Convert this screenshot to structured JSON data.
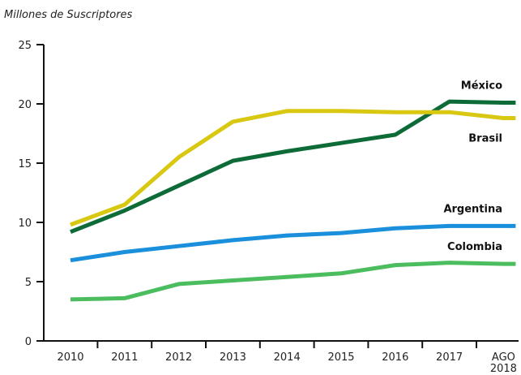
{
  "chart_data": {
    "type": "line",
    "title": "",
    "ylabel": "Millones de Suscriptores",
    "xlabel": "",
    "categories": [
      "2010",
      "2011",
      "2012",
      "2013",
      "2014",
      "2015",
      "2016",
      "2017",
      "AGO 2018"
    ],
    "category_lines": [
      [
        "2010"
      ],
      [
        "2011"
      ],
      [
        "2012"
      ],
      [
        "2013"
      ],
      [
        "2014"
      ],
      [
        "2015"
      ],
      [
        "2016"
      ],
      [
        "2017"
      ],
      [
        "AGO",
        "2018"
      ]
    ],
    "ylim": [
      0,
      25
    ],
    "yticks": [
      0,
      5,
      10,
      15,
      20,
      25
    ],
    "grid": false,
    "legend": "direct labels at line ends",
    "series": [
      {
        "name": "México",
        "color": "#0d6b37",
        "values": [
          9.2,
          11.0,
          13.1,
          15.2,
          16.0,
          16.7,
          17.4,
          20.2,
          20.1
        ]
      },
      {
        "name": "Brasil",
        "color": "#d9c812",
        "values": [
          9.8,
          11.5,
          15.5,
          18.5,
          19.4,
          19.4,
          19.3,
          19.3,
          18.8
        ]
      },
      {
        "name": "Argentina",
        "color": "#1a8fdc",
        "values": [
          6.8,
          7.5,
          8.0,
          8.5,
          8.9,
          9.1,
          9.5,
          9.7,
          9.7
        ]
      },
      {
        "name": "Colombia",
        "color": "#4cbd5f",
        "values": [
          3.5,
          3.6,
          4.8,
          5.1,
          5.4,
          5.7,
          6.4,
          6.6,
          6.5
        ]
      }
    ]
  }
}
